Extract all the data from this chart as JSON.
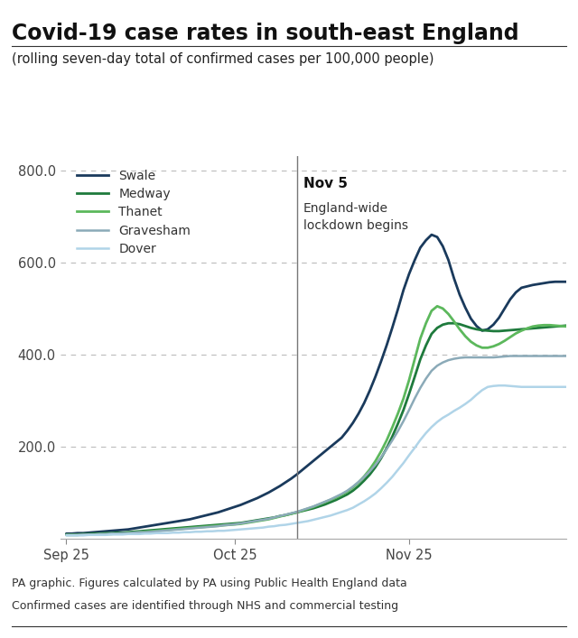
{
  "title": "Covid-19 case rates in south-east England",
  "subtitle": "(rolling seven-day total of confirmed cases per 100,000 people)",
  "footnote1": "PA graphic. Figures calculated by PA using Public Health England data",
  "footnote2": "Confirmed cases are identified through NHS and commercial testing",
  "vline_label_line1": "Nov 5",
  "vline_label_line2": "England-wide\nlockdown begins",
  "xlabel_ticks": [
    "Sep 25",
    "Oct 25",
    "Nov 25"
  ],
  "ylim": [
    0,
    830
  ],
  "yticks": [
    200.0,
    400.0,
    600.0,
    800.0
  ],
  "background_color": "#ffffff",
  "plot_bg_color": "#ffffff",
  "grid_color": "#bbbbbb",
  "vline_color": "#777777",
  "series": {
    "Swale": {
      "color": "#1a3a5c",
      "linewidth": 2.0,
      "values": [
        12,
        12,
        13,
        13,
        14,
        15,
        16,
        17,
        18,
        19,
        20,
        21,
        23,
        25,
        27,
        29,
        31,
        33,
        35,
        37,
        39,
        41,
        43,
        46,
        49,
        52,
        55,
        58,
        62,
        66,
        70,
        74,
        79,
        84,
        89,
        95,
        101,
        108,
        115,
        123,
        131,
        140,
        150,
        160,
        170,
        180,
        190,
        200,
        210,
        220,
        235,
        252,
        272,
        295,
        322,
        352,
        385,
        420,
        458,
        498,
        540,
        575,
        605,
        632,
        648,
        660,
        655,
        635,
        605,
        565,
        530,
        502,
        478,
        462,
        452,
        455,
        465,
        480,
        500,
        520,
        535,
        545,
        548,
        551,
        553,
        555,
        557,
        558,
        558,
        558
      ]
    },
    "Medway": {
      "color": "#1e7a3c",
      "linewidth": 2.0,
      "values": [
        10,
        10,
        10,
        11,
        11,
        12,
        12,
        13,
        13,
        14,
        14,
        15,
        16,
        17,
        18,
        19,
        20,
        21,
        22,
        23,
        24,
        25,
        26,
        27,
        28,
        29,
        30,
        31,
        32,
        33,
        34,
        35,
        37,
        39,
        41,
        43,
        45,
        47,
        50,
        52,
        55,
        58,
        61,
        64,
        67,
        71,
        75,
        80,
        85,
        91,
        97,
        105,
        115,
        127,
        140,
        156,
        175,
        197,
        222,
        250,
        280,
        315,
        352,
        390,
        420,
        445,
        458,
        465,
        468,
        468,
        466,
        462,
        458,
        455,
        453,
        452,
        451,
        451,
        452,
        453,
        454,
        455,
        456,
        457,
        458,
        459,
        460,
        461,
        462,
        463
      ]
    },
    "Thanet": {
      "color": "#5cb85c",
      "linewidth": 2.0,
      "values": [
        9,
        9,
        9,
        10,
        10,
        10,
        11,
        11,
        11,
        12,
        12,
        13,
        14,
        15,
        16,
        17,
        18,
        19,
        20,
        21,
        22,
        23,
        24,
        25,
        26,
        27,
        28,
        29,
        30,
        31,
        32,
        33,
        35,
        37,
        39,
        41,
        43,
        46,
        49,
        52,
        55,
        58,
        62,
        66,
        70,
        75,
        80,
        85,
        90,
        96,
        103,
        112,
        123,
        136,
        151,
        169,
        190,
        214,
        242,
        272,
        305,
        345,
        390,
        435,
        468,
        495,
        505,
        500,
        488,
        472,
        455,
        440,
        428,
        420,
        415,
        415,
        418,
        423,
        430,
        438,
        446,
        452,
        457,
        461,
        463,
        464,
        464,
        463,
        462,
        461
      ]
    },
    "Gravesham": {
      "color": "#8baab8",
      "linewidth": 1.8,
      "values": [
        9,
        9,
        9,
        10,
        10,
        10,
        11,
        11,
        12,
        12,
        13,
        13,
        14,
        15,
        15,
        16,
        17,
        18,
        19,
        20,
        21,
        22,
        23,
        24,
        25,
        26,
        27,
        28,
        30,
        31,
        32,
        34,
        36,
        38,
        40,
        42,
        44,
        47,
        50,
        53,
        56,
        59,
        63,
        67,
        71,
        76,
        81,
        86,
        92,
        98,
        105,
        114,
        124,
        135,
        147,
        161,
        177,
        195,
        214,
        234,
        256,
        280,
        305,
        328,
        348,
        365,
        376,
        383,
        388,
        391,
        393,
        394,
        394,
        394,
        394,
        394,
        394,
        395,
        396,
        397,
        397,
        397,
        397,
        397,
        397,
        397,
        397,
        397,
        397,
        397
      ]
    },
    "Dover": {
      "color": "#b0d4e8",
      "linewidth": 1.8,
      "values": [
        8,
        8,
        8,
        8,
        9,
        9,
        9,
        9,
        10,
        10,
        10,
        11,
        11,
        11,
        12,
        12,
        13,
        13,
        13,
        14,
        14,
        15,
        15,
        16,
        16,
        17,
        17,
        18,
        18,
        19,
        20,
        21,
        22,
        23,
        24,
        25,
        27,
        28,
        30,
        31,
        33,
        35,
        37,
        39,
        42,
        45,
        48,
        51,
        55,
        59,
        63,
        68,
        75,
        82,
        90,
        99,
        110,
        122,
        135,
        150,
        165,
        182,
        198,
        215,
        230,
        243,
        254,
        263,
        270,
        278,
        285,
        293,
        302,
        313,
        323,
        330,
        332,
        333,
        333,
        332,
        331,
        330,
        330,
        330,
        330,
        330,
        330,
        330,
        330,
        330
      ]
    }
  },
  "n_points": 90,
  "vline_x_index": 41,
  "xtick_positions": [
    0,
    30,
    61
  ],
  "title_fontsize": 17,
  "subtitle_fontsize": 10.5,
  "legend_fontsize": 10,
  "axis_fontsize": 10.5,
  "footnote_fontsize": 9
}
